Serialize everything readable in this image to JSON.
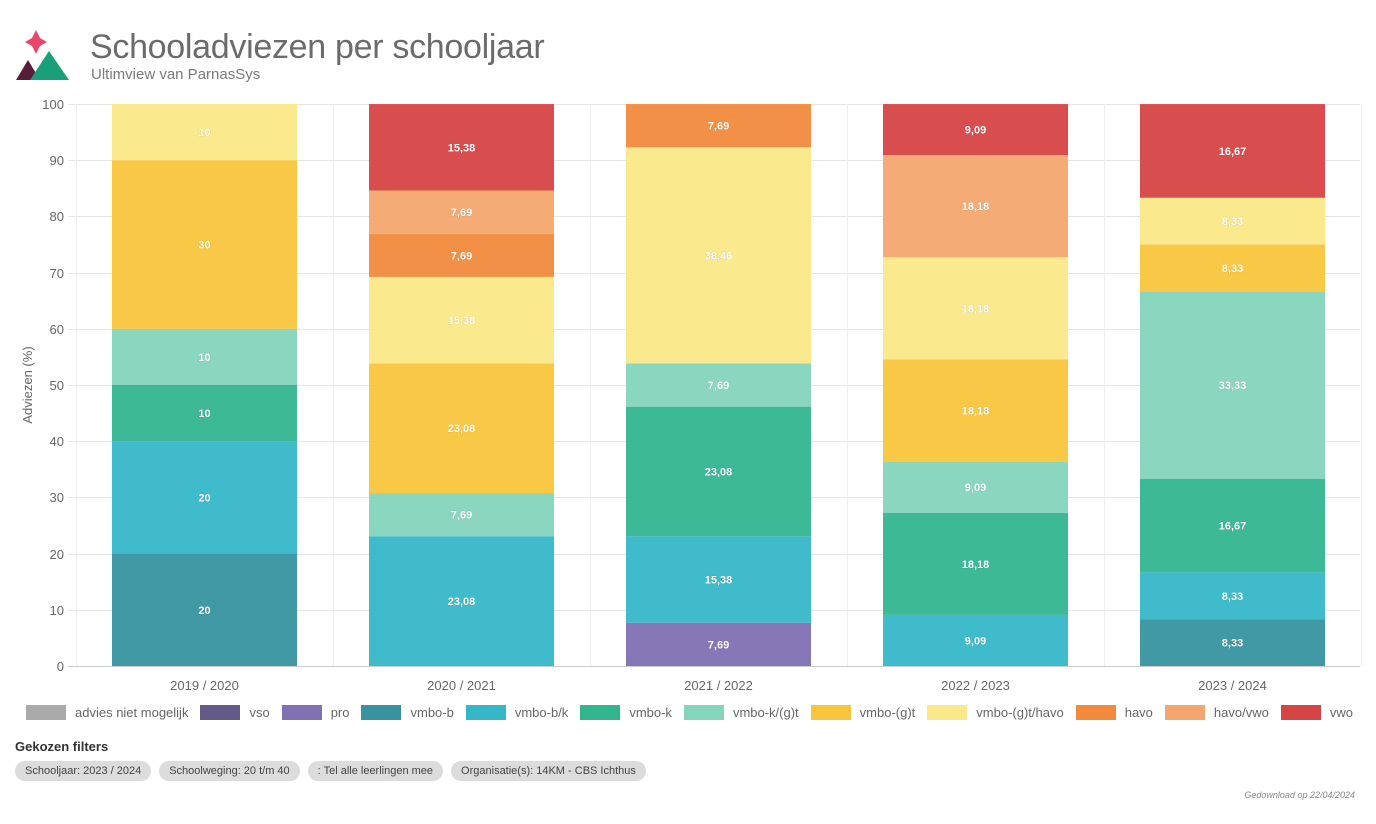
{
  "header": {
    "title": "Schooladviezen per schooljaar",
    "subtitle": "Ultimview van ParnasSys"
  },
  "chart_data": {
    "type": "bar",
    "stacked": true,
    "title": "Schooladviezen per schooljaar",
    "xlabel": "",
    "ylabel": "Adviezen (%)",
    "ylim": [
      0,
      100
    ],
    "yticks": [
      0,
      10,
      20,
      30,
      40,
      50,
      60,
      70,
      80,
      90,
      100
    ],
    "grid": true,
    "legend_position": "bottom",
    "categories": [
      "2019 / 2020",
      "2020 / 2021",
      "2021 / 2022",
      "2022 / 2023",
      "2023 / 2024"
    ],
    "series": [
      {
        "name": "advies niet mogelijk",
        "color": "#aaaaaa",
        "values": [
          0,
          0,
          0,
          0,
          0
        ],
        "labels": [
          "",
          "",
          "",
          "",
          ""
        ]
      },
      {
        "name": "vso",
        "color": "#645a8a",
        "values": [
          0,
          0,
          0,
          0,
          0
        ],
        "labels": [
          "",
          "",
          "",
          "",
          ""
        ]
      },
      {
        "name": "pro",
        "color": "#8071b3",
        "values": [
          0,
          0,
          7.69,
          0,
          0
        ],
        "labels": [
          "",
          "",
          "7,69",
          "",
          ""
        ]
      },
      {
        "name": "vmbo-b",
        "color": "#36939f",
        "values": [
          20,
          0,
          0,
          0,
          8.33
        ],
        "labels": [
          "20",
          "",
          "",
          "",
          "8,33"
        ]
      },
      {
        "name": "vmbo-b/k",
        "color": "#35b7c8",
        "values": [
          20,
          23.08,
          15.38,
          9.09,
          8.33
        ],
        "labels": [
          "20",
          "23,08",
          "15,38",
          "9,09",
          "8,33"
        ]
      },
      {
        "name": "vmbo-k",
        "color": "#33b58f",
        "values": [
          10,
          0,
          23.08,
          18.18,
          16.67
        ],
        "labels": [
          "10",
          "",
          "23,08",
          "18,18",
          "16,67"
        ]
      },
      {
        "name": "vmbo-k/(g)t",
        "color": "#85d4bc",
        "values": [
          10,
          7.69,
          7.69,
          9.09,
          33.33
        ],
        "labels": [
          "10",
          "7,69",
          "7,69",
          "9,09",
          "33,33"
        ]
      },
      {
        "name": "vmbo-(g)t",
        "color": "#f9c53c",
        "values": [
          30,
          23.08,
          0,
          18.18,
          8.33
        ],
        "labels": [
          "30",
          "23,08",
          "",
          "18,18",
          "8,33"
        ]
      },
      {
        "name": "vmbo-(g)t/havo",
        "color": "#fbe888",
        "values": [
          10,
          15.38,
          38.46,
          18.18,
          8.33
        ],
        "labels": [
          "10",
          "15,38",
          "38,46",
          "18,18",
          "8,33"
        ]
      },
      {
        "name": "havo",
        "color": "#f18a3d",
        "values": [
          0,
          7.69,
          7.69,
          0,
          0
        ],
        "labels": [
          "",
          "7,69",
          "7,69",
          "",
          ""
        ]
      },
      {
        "name": "havo/vwo",
        "color": "#f3a76f",
        "values": [
          0,
          7.69,
          0,
          18.18,
          0
        ],
        "labels": [
          "",
          "7,69",
          "",
          "18,18",
          ""
        ]
      },
      {
        "name": "vwo",
        "color": "#d64545",
        "values": [
          0,
          15.38,
          0,
          9.09,
          16.67
        ],
        "labels": [
          "",
          "15,38",
          "",
          "9,09",
          "16,67"
        ]
      }
    ]
  },
  "filters": {
    "title": "Gekozen filters",
    "chips": [
      "Schooljaar: 2023 / 2024",
      "Schoolweging: 20 t/m 40",
      ": Tel alle leerlingen mee",
      "Organisatie(s): 14KM - CBS Ichthus"
    ]
  },
  "footer": {
    "download_text": "Gedownload op 22/04/2024"
  },
  "colors": {
    "logo_star": "#e8466a",
    "logo_mountain_dark": "#5a1a3c",
    "logo_mountain_green": "#19a07a"
  }
}
